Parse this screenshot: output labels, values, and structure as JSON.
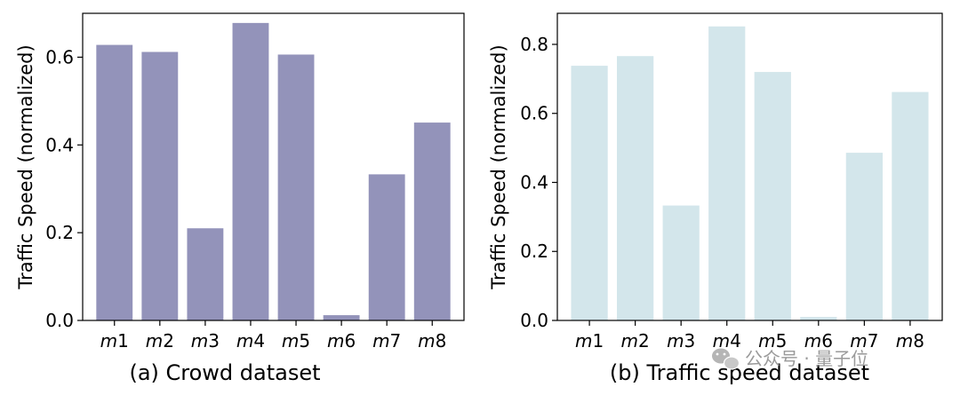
{
  "chart_data": [
    {
      "type": "bar",
      "title": "(a) Crowd dataset",
      "xlabel": "",
      "ylabel": "Traffic Speed (normalized)",
      "categories": [
        {
          "var": "m",
          "num": "1"
        },
        {
          "var": "m",
          "num": "2"
        },
        {
          "var": "m",
          "num": "3"
        },
        {
          "var": "m",
          "num": "4"
        },
        {
          "var": "m",
          "num": "5"
        },
        {
          "var": "m",
          "num": "6"
        },
        {
          "var": "m",
          "num": "7"
        },
        {
          "var": "m",
          "num": "8"
        }
      ],
      "values": [
        0.628,
        0.612,
        0.21,
        0.678,
        0.606,
        0.012,
        0.333,
        0.451
      ],
      "ylim": [
        0,
        0.7
      ],
      "yticks": [
        "0.0",
        "0.2",
        "0.4",
        "0.6"
      ],
      "ytick_values": [
        0,
        0.2,
        0.4,
        0.6
      ],
      "color": "#9393ba",
      "grid": false,
      "legend": "none"
    },
    {
      "type": "bar",
      "title": "(b) Traffic speed dataset",
      "xlabel": "",
      "ylabel": "Traffic Speed (normalized)",
      "categories": [
        {
          "var": "m",
          "num": "1"
        },
        {
          "var": "m",
          "num": "2"
        },
        {
          "var": "m",
          "num": "3"
        },
        {
          "var": "m",
          "num": "4"
        },
        {
          "var": "m",
          "num": "5"
        },
        {
          "var": "m",
          "num": "6"
        },
        {
          "var": "m",
          "num": "7"
        },
        {
          "var": "m",
          "num": "8"
        }
      ],
      "values": [
        0.738,
        0.766,
        0.333,
        0.852,
        0.72,
        0.01,
        0.486,
        0.662
      ],
      "ylim": [
        0,
        0.89
      ],
      "yticks": [
        "0.0",
        "0.2",
        "0.4",
        "0.6",
        "0.8"
      ],
      "ytick_values": [
        0,
        0.2,
        0.4,
        0.6,
        0.8
      ],
      "color": "#d3e6eb",
      "grid": false,
      "legend": "none"
    }
  ],
  "watermark": {
    "text": "公众号 · 量子位",
    "icon": "wechat-icon"
  }
}
